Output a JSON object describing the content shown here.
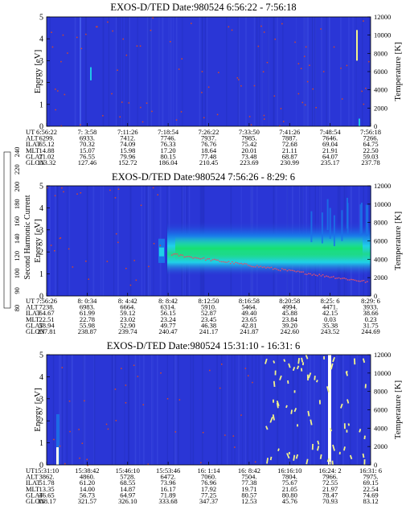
{
  "colors": {
    "background_level": "#2a36d6",
    "spectrogram_mid": "#20d0e8",
    "spectrogram_core": "#18e070",
    "trace_dotted": "#d6482a",
    "trace_bright": "#f2f28a",
    "frame": "#000000"
  },
  "colorbar": {
    "title": "Second Harmonic Current",
    "ticks": [
      "80",
      "90",
      "100",
      "120",
      "140",
      "160",
      "180",
      "200",
      "220",
      "240"
    ],
    "colors": [
      "#000000",
      "#7a0fb0",
      "#2f3fd8",
      "#1a73e8",
      "#19c8e6",
      "#1cd26c",
      "#9ee21a",
      "#f2e51a",
      "#f08a18",
      "#e01e1e"
    ]
  },
  "row_labels": [
    "UT",
    "ALT",
    "ILAT",
    "MLT",
    "GLAT",
    "GLON"
  ],
  "chart_data": [
    {
      "type": "heatmap",
      "title": "EXOS-D/TED   Date:980524   6:56:22 - 7:56:18",
      "ylabel": "Energy [eV]",
      "y2label": "Temperature [K]",
      "ylim": [
        0,
        5
      ],
      "y2lim": [
        0,
        12000
      ],
      "yticks": [
        "0",
        "1",
        "2",
        "3",
        "4",
        "5"
      ],
      "y2ticks": [
        "0",
        "2000",
        "4000",
        "6000",
        "8000",
        "10000",
        "12000"
      ],
      "x_rows": [
        [
          "6:56:22",
          "7: 3:58",
          "7:11:26",
          "7:18:54",
          "7:26:22",
          "7:33:50",
          "7:41:26",
          "7:48:54",
          "7:56:18"
        ],
        [
          "6299.",
          "6933.",
          "7412.",
          "7746.",
          "7937.",
          "7985.",
          "7887.",
          "7646.",
          "7266."
        ],
        [
          "65.12",
          "70.32",
          "74.09",
          "76.33",
          "76.76",
          "75.42",
          "72.68",
          "69.04",
          "64.75"
        ],
        [
          "14.88",
          "15.07",
          "15.98",
          "17.20",
          "18.64",
          "20.01",
          "21.11",
          "21.91",
          "22.50"
        ],
        [
          "71.02",
          "76.55",
          "79.96",
          "80.15",
          "77.48",
          "73.48",
          "68.87",
          "64.07",
          "59.03"
        ],
        [
          "113.32",
          "127.46",
          "152.72",
          "186.04",
          "210.45",
          "223.69",
          "230.99",
          "235.17",
          "237.78"
        ]
      ]
    },
    {
      "type": "heatmap",
      "title": "EXOS-D/TED   Date:980524   7:56:26 - 8:29: 6",
      "ylabel": "Energy [eV]",
      "y2label": "Temperature [K]",
      "ylim": [
        0,
        5
      ],
      "y2lim": [
        0,
        12000
      ],
      "yticks": [
        "0",
        "1",
        "2",
        "3",
        "4",
        "5"
      ],
      "y2ticks": [
        "0",
        "2000",
        "4000",
        "6000",
        "8000",
        "10000",
        "12000"
      ],
      "x_rows": [
        [
          "7:56:26",
          "8: 0:34",
          "8: 4:42",
          "8: 8:42",
          "8:12:50",
          "8:16:58",
          "8:20:58",
          "8:25: 6",
          "8:29: 6"
        ],
        [
          "7238.",
          "6983.",
          "6664.",
          "6314.",
          "5910.",
          "5464.",
          "4994.",
          "4471.",
          "3933."
        ],
        [
          "64.67",
          "61.99",
          "59.12",
          "56.15",
          "52.87",
          "49.40",
          "45.88",
          "42.15",
          "38.66"
        ],
        [
          "22.51",
          "22.78",
          "23.02",
          "23.24",
          "23.45",
          "23.65",
          "23.84",
          "0.03",
          "0.23"
        ],
        [
          "58.94",
          "55.98",
          "52.90",
          "49.77",
          "46.38",
          "42.81",
          "39.20",
          "35.38",
          "31.75"
        ],
        [
          "237.81",
          "238.87",
          "239.74",
          "240.47",
          "241.17",
          "241.87",
          "242.60",
          "243.52",
          "244.69"
        ]
      ]
    },
    {
      "type": "heatmap",
      "title": "EXOS-D/TED   Date:980524   15:31:10 - 16:31: 6",
      "ylabel": "Energy [eV]",
      "y2label": "Temperature [K]",
      "ylim": [
        0,
        5
      ],
      "y2lim": [
        0,
        12000
      ],
      "yticks": [
        "0",
        "1",
        "2",
        "3",
        "4",
        "5"
      ],
      "y2ticks": [
        "0",
        "2000",
        "4000",
        "6000",
        "8000",
        "10000",
        "12000"
      ],
      "x_rows": [
        [
          "15:31:10",
          "15:38:42",
          "15:46:10",
          "15:53:46",
          "16: 1:14",
          "16: 8:42",
          "16:16:10",
          "16:24: 2",
          "16:31: 6"
        ],
        [
          "3862.",
          "4860.",
          "5728.",
          "6472.",
          "7060.",
          "7504.",
          "7804.",
          "7966.",
          "7975."
        ],
        [
          "51.78",
          "61.20",
          "68.55",
          "73.96",
          "76.96",
          "77.38",
          "75.67",
          "72.55",
          "69.15"
        ],
        [
          "13.35",
          "14.00",
          "14.87",
          "16.17",
          "17.92",
          "19.71",
          "21.05",
          "21.97",
          "22.54"
        ],
        [
          "46.65",
          "56.73",
          "64.97",
          "71.89",
          "77.25",
          "80.57",
          "80.80",
          "78.47",
          "74.69"
        ],
        [
          "318.17",
          "321.57",
          "326.10",
          "333.68",
          "347.37",
          "12.53",
          "45.76",
          "70.93",
          "83.12"
        ]
      ]
    }
  ]
}
